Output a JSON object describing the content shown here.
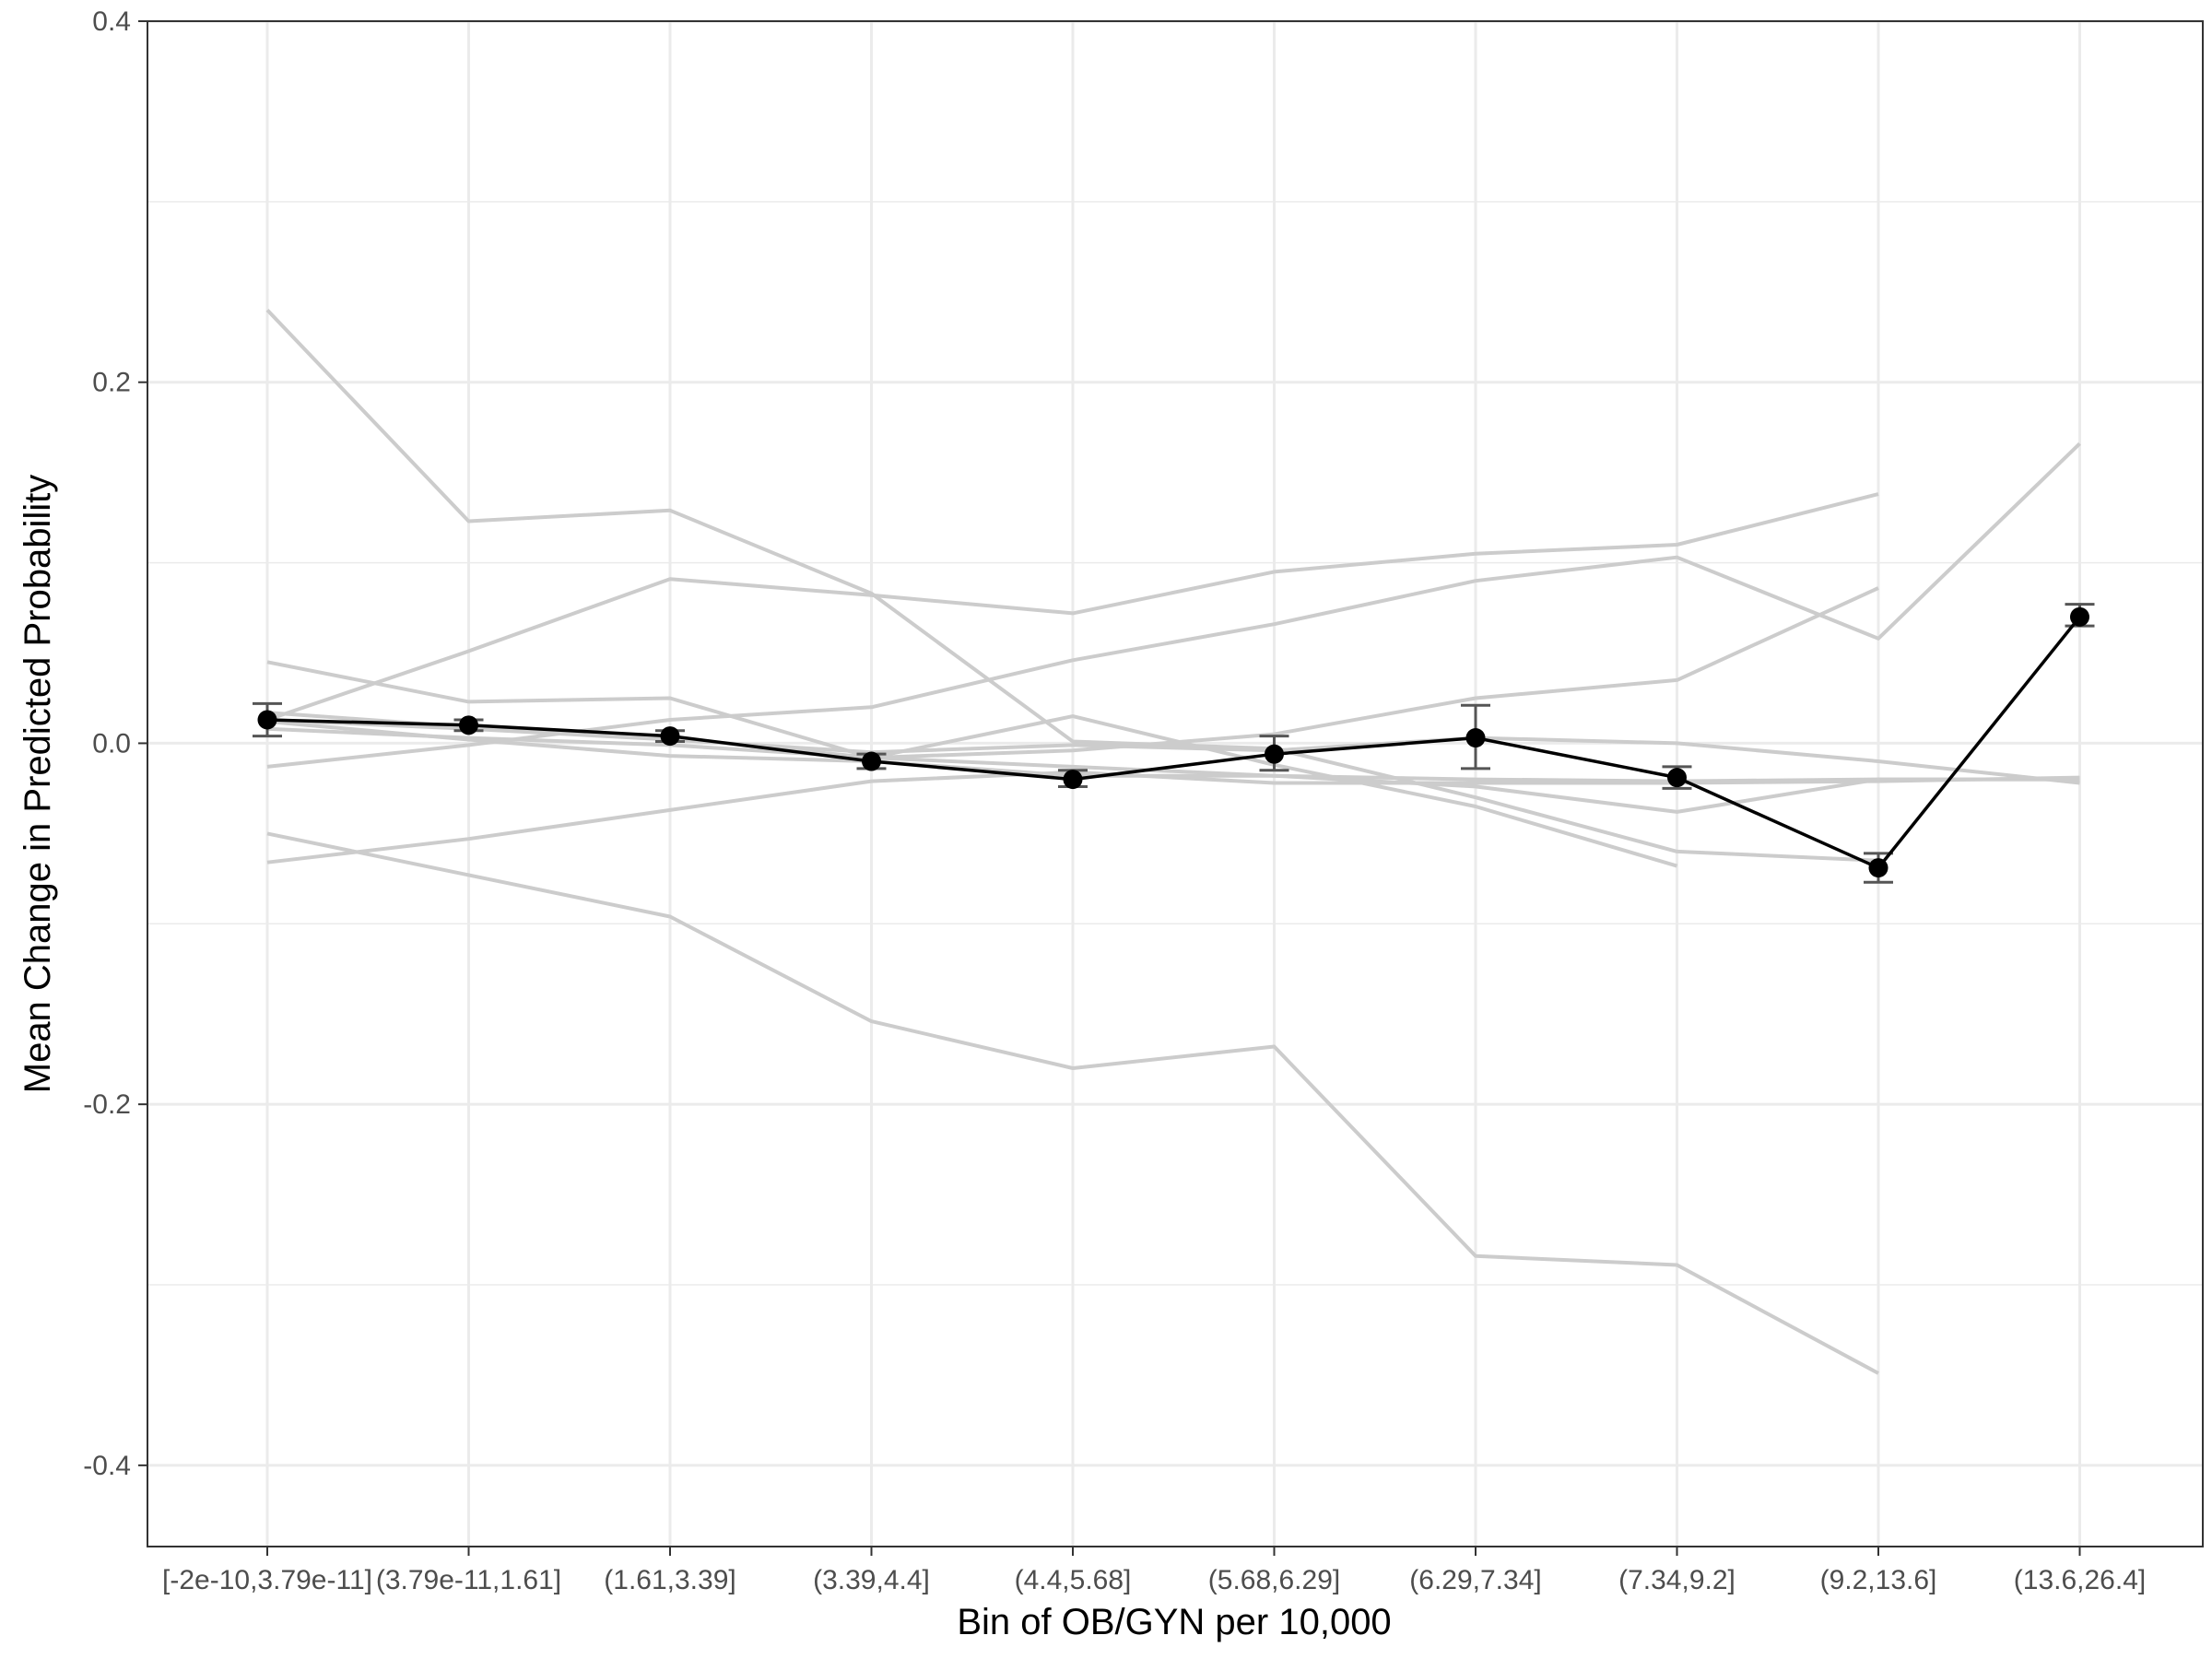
{
  "chart_data": {
    "type": "line",
    "xlabel": "Bin of OB/GYN per 10,000",
    "ylabel": "Mean Change in Predicted Probability",
    "categories": [
      "[-2e-10,3.79e-11]",
      "(3.79e-11,1.61]",
      "(1.61,3.39]",
      "(3.39,4.4]",
      "(4.4,5.68]",
      "(5.68,6.29]",
      "(6.29,7.34]",
      "(7.34,9.2]",
      "(9.2,13.6]",
      "(13.6,26.4]"
    ],
    "ylim": [
      -0.445,
      0.4
    ],
    "yticks": [
      -0.4,
      -0.2,
      0.0,
      0.2,
      0.4
    ],
    "ytick_labels": [
      "-0.4",
      "-0.2",
      "0.0",
      "0.2",
      "0.4"
    ],
    "grid": true,
    "background_series": [
      {
        "values": [
          0.24,
          0.123,
          0.129,
          0.083,
          0.001,
          -0.003,
          -0.03,
          -0.06,
          -0.065,
          null
        ]
      },
      {
        "values": [
          0.045,
          0.023,
          0.025,
          -0.008,
          -0.004,
          0.005,
          0.025,
          0.035,
          0.086,
          null
        ]
      },
      {
        "values": [
          0.013,
          0.051,
          0.091,
          0.082,
          0.072,
          0.095,
          0.105,
          0.11,
          0.138,
          null
        ]
      },
      {
        "values": [
          0.008,
          0.003,
          -0.001,
          -0.008,
          -0.013,
          -0.018,
          -0.024,
          -0.038,
          -0.02,
          -0.02
        ]
      },
      {
        "values": [
          -0.013,
          -0.001,
          0.013,
          0.02,
          0.046,
          0.066,
          0.09,
          0.103,
          0.058,
          0.166
        ]
      },
      {
        "values": [
          -0.05,
          -0.073,
          -0.096,
          -0.154,
          -0.18,
          -0.168,
          -0.284,
          -0.289,
          -0.349,
          null
        ]
      },
      {
        "values": [
          -0.066,
          -0.053,
          -0.037,
          -0.021,
          -0.016,
          -0.022,
          -0.022,
          -0.022,
          -0.021,
          -0.019
        ]
      },
      {
        "values": [
          0.017,
          0.009,
          0.003,
          -0.008,
          0.015,
          -0.012,
          -0.035,
          -0.068,
          null,
          null
        ]
      },
      {
        "values": [
          0.012,
          0.002,
          -0.007,
          -0.01,
          -0.018,
          -0.018,
          -0.02,
          -0.021,
          -0.02,
          -0.02
        ]
      },
      {
        "values": [
          0.013,
          0.008,
          0.002,
          -0.005,
          -0.001,
          -0.004,
          0.003,
          0.0,
          -0.01,
          -0.022
        ]
      }
    ],
    "mean_series": {
      "values": [
        0.013,
        0.01,
        0.004,
        -0.01,
        -0.02,
        -0.006,
        0.003,
        -0.019,
        -0.069,
        0.07
      ],
      "lower": [
        0.004,
        0.007,
        0.001,
        -0.014,
        -0.024,
        -0.015,
        -0.014,
        -0.025,
        -0.077,
        0.065
      ],
      "upper": [
        0.022,
        0.013,
        0.007,
        -0.006,
        -0.015,
        0.004,
        0.021,
        -0.013,
        -0.061,
        0.077
      ]
    },
    "colors": {
      "background_lines": "#cccccc",
      "mean_line": "#000000",
      "error_bars": "#555555",
      "grid": "#ebebeb",
      "panel_border": "#333333",
      "tick_text": "#4d4d4d"
    }
  }
}
